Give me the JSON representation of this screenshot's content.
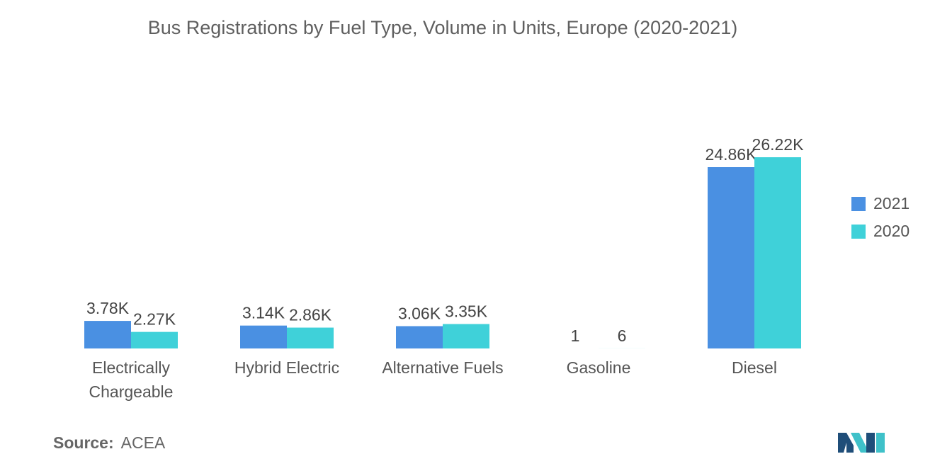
{
  "chart_data": {
    "type": "bar",
    "title": "Bus Registrations by Fuel Type, Volume in Units, Europe (2020-2021)",
    "categories": [
      [
        "Electrically",
        "Chargeable"
      ],
      [
        "Hybrid Electric"
      ],
      [
        "Alternative Fuels"
      ],
      [
        "Gasoline"
      ],
      [
        "Diesel"
      ]
    ],
    "series": [
      {
        "name": "2021",
        "color": "#4a90e2",
        "values": [
          3780,
          3140,
          3060,
          1,
          24860
        ],
        "labels": [
          "3.78K",
          "3.14K",
          "3.06K",
          "1",
          "24.86K"
        ]
      },
      {
        "name": "2020",
        "color": "#3fd1d9",
        "values": [
          2270,
          2860,
          3350,
          6,
          26220
        ],
        "labels": [
          "2.27K",
          "2.86K",
          "3.35K",
          "6",
          "26.22K"
        ]
      }
    ],
    "ylim": [
      0,
      26220
    ],
    "grid": false,
    "legend_position": "right"
  },
  "source": {
    "key": "Source:",
    "value": "ACEA"
  },
  "logo": {
    "icon": "mordor-intelligence-logo-icon",
    "color_dark": "#1f4e79",
    "color_light": "#3fc1c9"
  }
}
